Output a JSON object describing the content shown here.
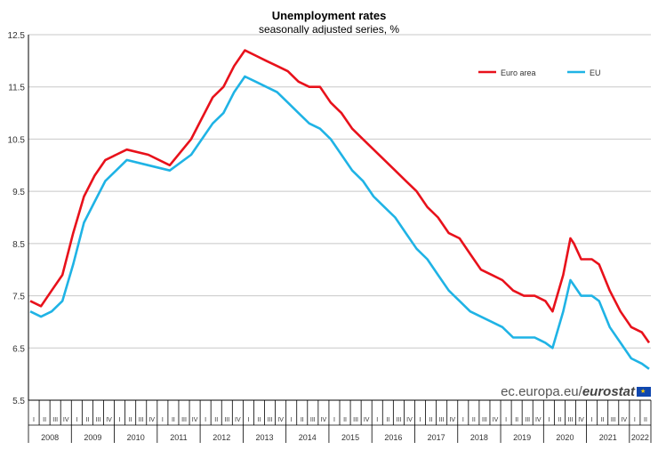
{
  "chart_data": {
    "type": "line",
    "title": "Unemployment rates",
    "subtitle": "seasonally adjusted series, %",
    "ylim": [
      5.5,
      12.5
    ],
    "yticks": [
      "12.5",
      "11.5",
      "10.5",
      "9.5",
      "8.5",
      "7.5",
      "6.5",
      "5.5"
    ],
    "grid": true,
    "legend_position": "top-right",
    "quarter_labels": [
      "I",
      "II",
      "III",
      "IV"
    ],
    "years": [
      "2008",
      "2009",
      "2010",
      "2011",
      "2012",
      "2013",
      "2014",
      "2015",
      "2016",
      "2017",
      "2018",
      "2019",
      "2020",
      "2021",
      "2022"
    ],
    "x_start": "2008-01",
    "x_end": "2022-06",
    "series": [
      {
        "name": "Euro area",
        "color": "#e8111b",
        "points": [
          [
            "2008-01",
            7.4
          ],
          [
            "2008-04",
            7.3
          ],
          [
            "2008-07",
            7.6
          ],
          [
            "2008-10",
            7.9
          ],
          [
            "2009-01",
            8.7
          ],
          [
            "2009-04",
            9.4
          ],
          [
            "2009-07",
            9.8
          ],
          [
            "2009-10",
            10.1
          ],
          [
            "2010-01",
            10.2
          ],
          [
            "2010-04",
            10.3
          ],
          [
            "2010-10",
            10.2
          ],
          [
            "2011-04",
            10.0
          ],
          [
            "2011-10",
            10.5
          ],
          [
            "2012-01",
            10.9
          ],
          [
            "2012-04",
            11.3
          ],
          [
            "2012-07",
            11.5
          ],
          [
            "2012-10",
            11.9
          ],
          [
            "2013-01",
            12.2
          ],
          [
            "2013-04",
            12.1
          ],
          [
            "2013-07",
            12.0
          ],
          [
            "2013-10",
            11.9
          ],
          [
            "2014-01",
            11.8
          ],
          [
            "2014-04",
            11.6
          ],
          [
            "2014-07",
            11.5
          ],
          [
            "2014-10",
            11.5
          ],
          [
            "2015-01",
            11.2
          ],
          [
            "2015-04",
            11.0
          ],
          [
            "2015-07",
            10.7
          ],
          [
            "2015-10",
            10.5
          ],
          [
            "2016-01",
            10.3
          ],
          [
            "2016-04",
            10.1
          ],
          [
            "2016-07",
            9.9
          ],
          [
            "2016-10",
            9.7
          ],
          [
            "2017-01",
            9.5
          ],
          [
            "2017-04",
            9.2
          ],
          [
            "2017-07",
            9.0
          ],
          [
            "2017-10",
            8.7
          ],
          [
            "2018-01",
            8.6
          ],
          [
            "2018-04",
            8.3
          ],
          [
            "2018-07",
            8.0
          ],
          [
            "2018-10",
            7.9
          ],
          [
            "2019-01",
            7.8
          ],
          [
            "2019-04",
            7.6
          ],
          [
            "2019-07",
            7.5
          ],
          [
            "2019-10",
            7.5
          ],
          [
            "2020-01",
            7.4
          ],
          [
            "2020-03",
            7.2
          ],
          [
            "2020-06",
            7.9
          ],
          [
            "2020-08",
            8.6
          ],
          [
            "2020-09",
            8.5
          ],
          [
            "2020-11",
            8.2
          ],
          [
            "2021-02",
            8.2
          ],
          [
            "2021-04",
            8.1
          ],
          [
            "2021-07",
            7.6
          ],
          [
            "2021-10",
            7.2
          ],
          [
            "2022-01",
            6.9
          ],
          [
            "2022-04",
            6.8
          ],
          [
            "2022-06",
            6.6
          ]
        ]
      },
      {
        "name": "EU",
        "color": "#1fb3e5",
        "points": [
          [
            "2008-01",
            7.2
          ],
          [
            "2008-04",
            7.1
          ],
          [
            "2008-07",
            7.2
          ],
          [
            "2008-10",
            7.4
          ],
          [
            "2009-01",
            8.1
          ],
          [
            "2009-04",
            8.9
          ],
          [
            "2009-07",
            9.3
          ],
          [
            "2009-10",
            9.7
          ],
          [
            "2010-01",
            9.9
          ],
          [
            "2010-04",
            10.1
          ],
          [
            "2010-10",
            10.0
          ],
          [
            "2011-04",
            9.9
          ],
          [
            "2011-10",
            10.2
          ],
          [
            "2012-01",
            10.5
          ],
          [
            "2012-04",
            10.8
          ],
          [
            "2012-07",
            11.0
          ],
          [
            "2012-10",
            11.4
          ],
          [
            "2013-01",
            11.7
          ],
          [
            "2013-04",
            11.6
          ],
          [
            "2013-07",
            11.5
          ],
          [
            "2013-10",
            11.4
          ],
          [
            "2014-01",
            11.2
          ],
          [
            "2014-04",
            11.0
          ],
          [
            "2014-07",
            10.8
          ],
          [
            "2014-10",
            10.7
          ],
          [
            "2015-01",
            10.5
          ],
          [
            "2015-04",
            10.2
          ],
          [
            "2015-07",
            9.9
          ],
          [
            "2015-10",
            9.7
          ],
          [
            "2016-01",
            9.4
          ],
          [
            "2016-04",
            9.2
          ],
          [
            "2016-07",
            9.0
          ],
          [
            "2016-10",
            8.7
          ],
          [
            "2017-01",
            8.4
          ],
          [
            "2017-04",
            8.2
          ],
          [
            "2017-07",
            7.9
          ],
          [
            "2017-10",
            7.6
          ],
          [
            "2018-01",
            7.4
          ],
          [
            "2018-04",
            7.2
          ],
          [
            "2018-07",
            7.1
          ],
          [
            "2018-10",
            7.0
          ],
          [
            "2019-01",
            6.9
          ],
          [
            "2019-04",
            6.7
          ],
          [
            "2019-07",
            6.7
          ],
          [
            "2019-10",
            6.7
          ],
          [
            "2020-01",
            6.6
          ],
          [
            "2020-03",
            6.5
          ],
          [
            "2020-06",
            7.2
          ],
          [
            "2020-08",
            7.8
          ],
          [
            "2020-09",
            7.7
          ],
          [
            "2020-11",
            7.5
          ],
          [
            "2021-02",
            7.5
          ],
          [
            "2021-04",
            7.4
          ],
          [
            "2021-07",
            6.9
          ],
          [
            "2021-10",
            6.6
          ],
          [
            "2022-01",
            6.3
          ],
          [
            "2022-04",
            6.2
          ],
          [
            "2022-06",
            6.1
          ]
        ]
      }
    ]
  },
  "branding": {
    "domain": "ec.europa.eu/",
    "brand": "eurostat"
  }
}
